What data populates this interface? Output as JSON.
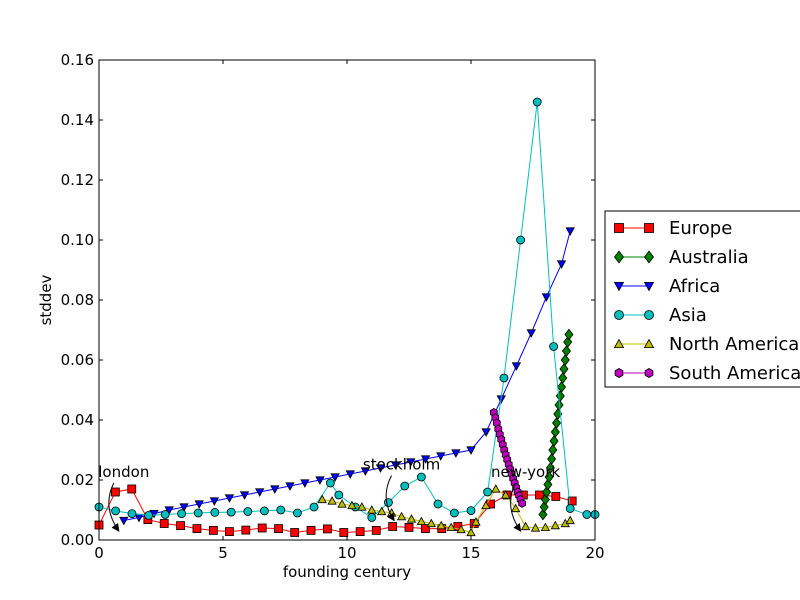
{
  "chart_data": {
    "type": "line",
    "title": "",
    "xlabel": "founding century",
    "ylabel": "stddev",
    "xlim": [
      0,
      20
    ],
    "ylim": [
      0,
      0.16
    ],
    "xticks": [
      0,
      5,
      10,
      15,
      20
    ],
    "yticks": [
      0.0,
      0.02,
      0.04,
      0.06,
      0.08,
      0.1,
      0.12,
      0.14,
      0.16
    ],
    "xtick_labels": [
      "0",
      "5",
      "10",
      "15",
      "20"
    ],
    "ytick_labels": [
      "0.00",
      "0.02",
      "0.04",
      "0.06",
      "0.08",
      "0.10",
      "0.12",
      "0.14",
      "0.16"
    ],
    "grid": false,
    "legend_position": "right, outside",
    "series": [
      {
        "name": "Europe",
        "color": "#ff0000",
        "marker": "square",
        "x": [
          0,
          0.66,
          1.32,
          1.97,
          2.63,
          3.29,
          3.95,
          4.61,
          5.26,
          5.92,
          6.58,
          7.24,
          7.89,
          8.55,
          9.21,
          9.87,
          10.53,
          11.18,
          11.84,
          12.5,
          13.16,
          13.82,
          14.47,
          15.13,
          15.79,
          16.45,
          17.11,
          17.76,
          18.42,
          19.08
        ],
        "y": [
          0.005,
          0.016,
          0.017,
          0.0068,
          0.0055,
          0.0048,
          0.0038,
          0.0032,
          0.0028,
          0.0033,
          0.004,
          0.0038,
          0.0025,
          0.0032,
          0.0037,
          0.0025,
          0.0028,
          0.0032,
          0.0045,
          0.0042,
          0.0038,
          0.0038,
          0.0045,
          0.0055,
          0.012,
          0.015,
          0.015,
          0.015,
          0.0145,
          0.013
        ]
      },
      {
        "name": "Australia",
        "color": "#008000",
        "marker": "diamond",
        "x": [
          17.9,
          17.95,
          18.0,
          18.05,
          18.1,
          18.15,
          18.2,
          18.25,
          18.3,
          18.35,
          18.4,
          18.45,
          18.5,
          18.55,
          18.6,
          18.65,
          18.7,
          18.75,
          18.8,
          18.85,
          18.9,
          18.95
        ],
        "y": [
          0.0085,
          0.011,
          0.0135,
          0.016,
          0.0185,
          0.021,
          0.024,
          0.027,
          0.03,
          0.033,
          0.036,
          0.039,
          0.042,
          0.045,
          0.048,
          0.051,
          0.054,
          0.057,
          0.06,
          0.063,
          0.066,
          0.0685
        ]
      },
      {
        "name": "Africa",
        "color": "#0000ff",
        "marker": "triangle-down",
        "x": [
          1.0,
          1.61,
          2.22,
          2.83,
          3.43,
          4.04,
          4.65,
          5.26,
          5.87,
          6.48,
          7.09,
          7.7,
          8.3,
          8.91,
          9.52,
          10.13,
          10.74,
          11.35,
          11.96,
          12.57,
          13.17,
          13.78,
          14.39,
          15.0,
          15.61,
          16.22,
          16.83,
          17.43,
          18.04,
          18.65,
          19.0
        ],
        "y": [
          0.0065,
          0.0075,
          0.0088,
          0.01,
          0.011,
          0.012,
          0.013,
          0.014,
          0.015,
          0.016,
          0.017,
          0.018,
          0.019,
          0.02,
          0.021,
          0.022,
          0.023,
          0.024,
          0.025,
          0.026,
          0.027,
          0.028,
          0.029,
          0.03,
          0.036,
          0.047,
          0.058,
          0.069,
          0.081,
          0.092,
          0.103
        ]
      },
      {
        "name": "Asia",
        "color": "#00bfbf",
        "marker": "circle",
        "x": [
          0.0,
          0.67,
          1.33,
          2.0,
          2.67,
          3.33,
          4.0,
          4.67,
          5.33,
          6.0,
          6.67,
          7.33,
          8.0,
          8.67,
          9.33,
          9.67,
          10.33,
          11.0,
          11.67,
          12.33,
          13.0,
          13.67,
          14.33,
          15.0,
          15.67,
          16.33,
          17.0,
          17.67,
          18.33,
          19.0,
          19.67,
          20.0
        ],
        "y": [
          0.011,
          0.0097,
          0.0088,
          0.0082,
          0.0085,
          0.0088,
          0.009,
          0.0092,
          0.0093,
          0.0095,
          0.0097,
          0.01,
          0.009,
          0.011,
          0.019,
          0.015,
          0.011,
          0.0075,
          0.0125,
          0.018,
          0.021,
          0.012,
          0.009,
          0.0098,
          0.016,
          0.054,
          0.1,
          0.146,
          0.0645,
          0.0105,
          0.0085,
          0.0085
        ]
      },
      {
        "name": "North America",
        "color": "#bfbf00",
        "marker": "triangle-up",
        "x": [
          9.0,
          9.4,
          9.8,
          10.2,
          10.6,
          11.0,
          11.4,
          11.8,
          12.2,
          12.6,
          13.0,
          13.4,
          13.8,
          14.2,
          14.6,
          15.0,
          15.2,
          15.6,
          16.0,
          16.4,
          16.8,
          17.2,
          17.6,
          18.0,
          18.4,
          18.8,
          19.0
        ],
        "y": [
          0.0135,
          0.013,
          0.012,
          0.0115,
          0.011,
          0.01,
          0.0095,
          0.009,
          0.0078,
          0.007,
          0.0062,
          0.0055,
          0.0048,
          0.0042,
          0.0035,
          0.0025,
          0.006,
          0.0115,
          0.017,
          0.015,
          0.0105,
          0.0045,
          0.004,
          0.0042,
          0.0048,
          0.0055,
          0.0065
        ]
      },
      {
        "name": "South America",
        "color": "#bf00bf",
        "marker": "hexagon",
        "x": [
          15.92,
          15.98,
          16.04,
          16.1,
          16.16,
          16.22,
          16.28,
          16.34,
          16.4,
          16.46,
          16.52,
          16.58,
          16.64,
          16.7,
          16.76,
          16.82,
          16.88,
          16.94,
          17.0,
          17.06
        ],
        "y": [
          0.0425,
          0.0408,
          0.039,
          0.037,
          0.0352,
          0.0335,
          0.0318,
          0.03,
          0.0284,
          0.0268,
          0.0252,
          0.0236,
          0.022,
          0.0205,
          0.019,
          0.0175,
          0.016,
          0.0148,
          0.0135,
          0.0122
        ]
      }
    ],
    "annotations": [
      {
        "text": "london",
        "xy": [
          0.8,
          0.003
        ],
        "text_xy": [
          1.0,
          0.021
        ]
      },
      {
        "text": "stockholm",
        "xy": [
          11.9,
          0.0065
        ],
        "text_xy": [
          12.2,
          0.0235
        ]
      },
      {
        "text": "new-york",
        "xy": [
          17.0,
          0.003
        ],
        "text_xy": [
          17.2,
          0.021
        ]
      }
    ]
  }
}
